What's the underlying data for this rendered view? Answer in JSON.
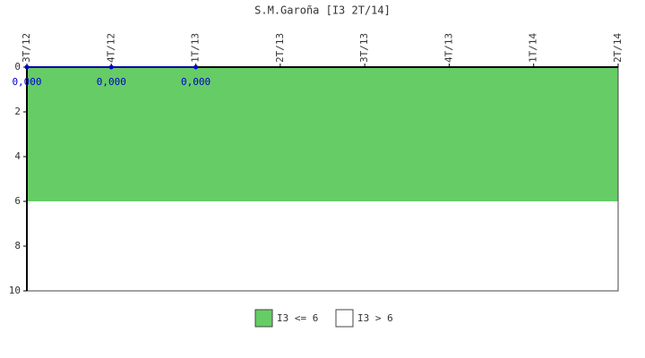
{
  "chart_data": {
    "type": "line",
    "title": "S.M.Garoña [I3 2T/14]",
    "categories": [
      "3T/12",
      "4T/12",
      "1T/13",
      "2T/13",
      "3T/13",
      "4T/13",
      "1T/14",
      "2T/14"
    ],
    "series": [
      {
        "color": "#0000cc",
        "values": [
          0,
          0,
          0,
          null,
          null,
          null,
          null,
          null
        ],
        "value_labels": [
          "0,000",
          "0,000",
          "0,000",
          null,
          null,
          null,
          null,
          null
        ]
      }
    ],
    "ylim": [
      0,
      10
    ],
    "y_reversed": true,
    "yticks": [
      0,
      2,
      4,
      6,
      8,
      10
    ],
    "bands": [
      {
        "name": "I3 <= 6",
        "color": "#66cc66",
        "from": 0,
        "to": 6
      },
      {
        "name": "I3 > 6",
        "color": "#ffffff",
        "from": 6,
        "to": 10
      }
    ]
  }
}
